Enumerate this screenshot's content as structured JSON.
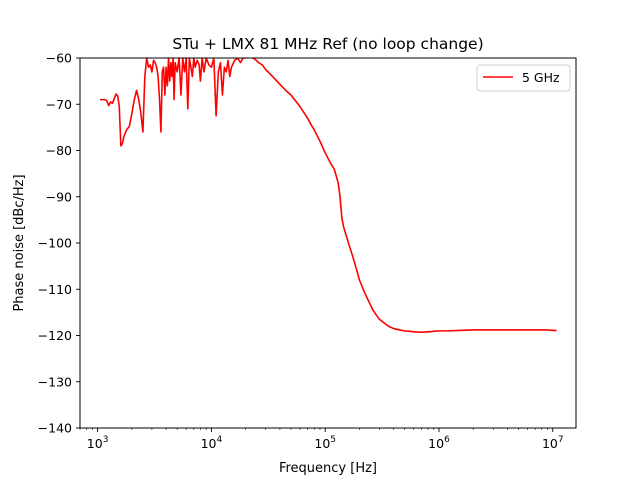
{
  "chart_data": {
    "type": "line",
    "title": "STu + LMX 81 MHz Ref (no loop change)",
    "xlabel": "Frequency [Hz]",
    "ylabel": "Phase noise [dBc/Hz]",
    "xscale": "log",
    "xlim": [
      700,
      16000000
    ],
    "ylim": [
      -140,
      -60
    ],
    "x_ticks": [
      1000,
      10000,
      100000,
      1000000,
      10000000
    ],
    "x_tick_labels": [
      {
        "base": "10",
        "exp": "3"
      },
      {
        "base": "10",
        "exp": "4"
      },
      {
        "base": "10",
        "exp": "5"
      },
      {
        "base": "10",
        "exp": "6"
      },
      {
        "base": "10",
        "exp": "7"
      }
    ],
    "y_ticks": [
      -60,
      -70,
      -80,
      -90,
      -100,
      -110,
      -120,
      -130,
      -140
    ],
    "y_tick_labels": [
      "−60",
      "−70",
      "−80",
      "−90",
      "−100",
      "−110",
      "−120",
      "−130",
      "−140"
    ],
    "grid": false,
    "legend": {
      "placement": "top-right",
      "entries": [
        {
          "label": "5 GHz",
          "color": "#ff0000"
        }
      ]
    },
    "series": [
      {
        "name": "5 GHz",
        "color": "#ff0000",
        "x": [
          1050,
          1150,
          1200,
          1250,
          1300,
          1350,
          1400,
          1450,
          1500,
          1550,
          1600,
          1650,
          1700,
          1800,
          1900,
          2000,
          2100,
          2200,
          2300,
          2400,
          2500,
          2600,
          2700,
          2800,
          2900,
          3000,
          3100,
          3200,
          3300,
          3400,
          3500,
          3600,
          3700,
          3800,
          3900,
          4000,
          4100,
          4200,
          4300,
          4400,
          4500,
          4600,
          4700,
          4800,
          5000,
          5200,
          5400,
          5600,
          5800,
          6000,
          6200,
          6400,
          6600,
          6800,
          7000,
          7200,
          7500,
          7800,
          8000,
          8300,
          8600,
          9000,
          9500,
          10000,
          10500,
          11000,
          11500,
          12000,
          12500,
          13000,
          13500,
          14000,
          14500,
          15000,
          16000,
          17000,
          18000,
          19000,
          20000,
          22000,
          24000,
          26000,
          28000,
          30000,
          33000,
          36000,
          40000,
          45000,
          50000,
          55000,
          60000,
          65000,
          70000,
          75000,
          80000,
          85000,
          90000,
          95000,
          100000,
          105000,
          110000,
          115000,
          120000,
          125000,
          130000,
          135000,
          140000,
          145000,
          150000,
          155000,
          160000,
          170000,
          180000,
          190000,
          200000,
          220000,
          240000,
          260000,
          280000,
          300000,
          330000,
          360000,
          400000,
          450000,
          500000,
          550000,
          600000,
          700000,
          800000,
          900000,
          1000000,
          1200000,
          1500000,
          2000000,
          2500000,
          3000000,
          4000000,
          5000000,
          6000000,
          7000000,
          8000000,
          9000000,
          10000000,
          10800000
        ],
        "y": [
          -69,
          -69,
          -69.2,
          -70.3,
          -69.5,
          -69.8,
          -68.8,
          -67.8,
          -68.2,
          -70.5,
          -79,
          -78.5,
          -77,
          -75.5,
          -74.8,
          -72,
          -69,
          -67,
          -69,
          -72,
          -76,
          -64,
          -60,
          -62,
          -61.5,
          -63,
          -60.5,
          -61,
          -62,
          -64,
          -69,
          -76,
          -63,
          -62,
          -68,
          -62,
          -66,
          -60,
          -65,
          -61,
          -64,
          -60,
          -69,
          -61,
          -63,
          -60,
          -68,
          -60,
          -63,
          -60,
          -71,
          -60,
          -62,
          -64,
          -60,
          -62,
          -60.5,
          -61.5,
          -65,
          -60,
          -63,
          -60,
          -61.5,
          -62,
          -60,
          -72.5,
          -63,
          -61,
          -68,
          -62,
          -63,
          -60.5,
          -64,
          -62,
          -60.5,
          -60,
          -61,
          -60,
          -60,
          -59.8,
          -60.2,
          -61,
          -61.5,
          -62.5,
          -63.5,
          -64.5,
          -65.7,
          -67,
          -68,
          -69.3,
          -70.5,
          -71.8,
          -73,
          -74.4,
          -75.5,
          -76.8,
          -78,
          -79.3,
          -80.5,
          -81.5,
          -82.5,
          -83.3,
          -84,
          -85.5,
          -87,
          -90,
          -94.5,
          -96.5,
          -97.7,
          -98.8,
          -100,
          -102,
          -104,
          -106,
          -108,
          -110.5,
          -112.5,
          -114.3,
          -115.5,
          -116.5,
          -117.3,
          -118,
          -118.5,
          -118.8,
          -119,
          -119.1,
          -119.2,
          -119.3,
          -119.2,
          -119.1,
          -119,
          -119,
          -118.9,
          -118.8,
          -118.8,
          -118.8,
          -118.8,
          -118.8,
          -118.8,
          -118.8,
          -118.8,
          -118.8,
          -118.9,
          -118.9
        ]
      }
    ]
  }
}
